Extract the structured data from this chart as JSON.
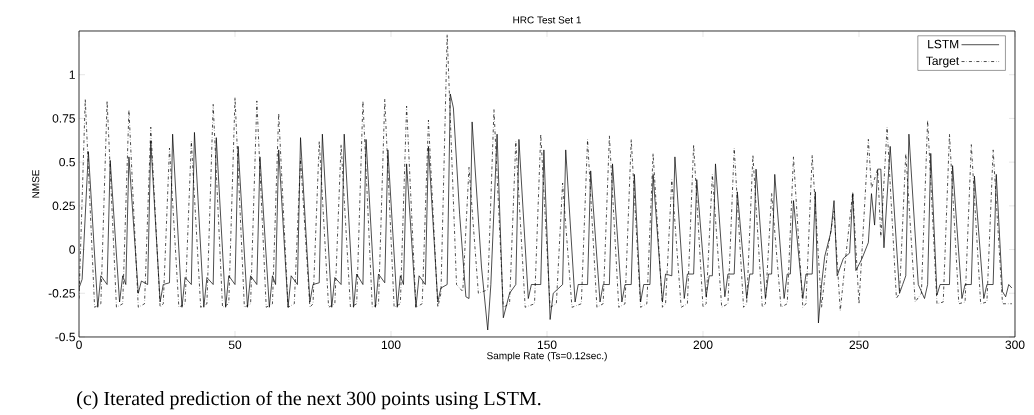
{
  "chart_data": {
    "type": "line",
    "title": "HRC Test Set 1",
    "xlabel": "Sample Rate (Ts=0.12sec.)",
    "ylabel": "NMSE",
    "annotations": [
      "(c) Iterated prediction of the next 300 points using LSTM."
    ],
    "xlim": [
      0,
      300
    ],
    "ylim": [
      -0.5,
      1.25
    ],
    "xticks": [
      0,
      50,
      100,
      150,
      200,
      250,
      300
    ],
    "yticks": [
      -0.5,
      -0.25,
      0,
      0.25,
      0.5,
      0.75,
      1
    ],
    "legend": "top right",
    "series": [
      {
        "name": "LSTM",
        "color": "#000000",
        "line_style": "solid",
        "x": [
          0,
          1,
          3,
          6,
          7,
          9,
          10,
          13,
          14,
          15,
          16,
          19,
          20,
          22,
          23,
          26,
          27,
          29,
          30,
          33,
          34,
          36,
          37,
          40,
          41,
          43,
          44,
          47,
          48,
          50,
          51,
          54,
          55,
          57,
          58,
          61,
          62,
          63,
          64,
          67,
          68,
          70,
          71,
          74,
          75,
          77,
          78,
          81,
          82,
          84,
          85,
          88,
          89,
          91,
          92,
          95,
          96,
          98,
          99,
          102,
          103,
          104,
          105,
          108,
          109,
          111,
          112,
          115,
          116,
          118,
          119,
          120,
          122,
          124,
          125,
          126,
          129,
          131,
          132,
          134,
          136,
          138,
          140,
          141,
          144,
          145,
          148,
          149,
          151,
          152,
          155,
          156,
          159,
          160,
          163,
          164,
          167,
          168,
          170,
          171,
          174,
          175,
          177,
          178,
          180,
          181,
          183,
          184,
          187,
          188,
          190,
          191,
          194,
          195,
          197,
          198,
          201,
          202,
          203,
          204,
          207,
          208,
          210,
          211,
          214,
          215,
          216,
          217,
          220,
          221,
          222,
          223,
          226,
          227,
          228,
          229,
          232,
          233,
          235,
          236,
          237,
          238,
          239,
          241,
          242,
          243,
          245,
          247,
          248,
          249,
          251,
          253,
          254,
          255,
          256,
          257,
          258,
          260,
          263,
          264,
          265,
          266,
          269,
          271,
          272,
          273,
          275,
          276,
          279,
          280,
          283,
          284,
          286,
          287,
          290,
          291,
          293,
          294,
          296,
          297,
          298,
          299
        ],
        "values": [
          -0.22,
          -0.17,
          0.56,
          -0.33,
          -0.15,
          -0.2,
          0.51,
          -0.3,
          -0.15,
          -0.2,
          0.53,
          -0.25,
          -0.18,
          -0.2,
          0.62,
          -0.3,
          -0.2,
          -0.19,
          0.66,
          -0.33,
          -0.16,
          -0.2,
          0.67,
          -0.33,
          -0.16,
          -0.2,
          0.64,
          -0.33,
          -0.15,
          -0.2,
          0.59,
          -0.33,
          -0.15,
          -0.2,
          0.53,
          -0.33,
          -0.15,
          -0.2,
          0.57,
          -0.33,
          -0.15,
          -0.2,
          0.64,
          -0.3,
          -0.2,
          -0.19,
          0.66,
          -0.33,
          -0.16,
          -0.2,
          0.66,
          -0.33,
          -0.14,
          -0.2,
          0.63,
          -0.33,
          -0.14,
          -0.19,
          0.57,
          -0.33,
          -0.15,
          -0.2,
          0.49,
          -0.33,
          -0.15,
          -0.2,
          0.59,
          -0.3,
          -0.22,
          -0.2,
          0.89,
          0.81,
          0.2,
          -0.27,
          -0.28,
          0.73,
          -0.1,
          -0.46,
          -0.2,
          0.66,
          -0.39,
          -0.25,
          -0.2,
          0.63,
          -0.28,
          -0.2,
          -0.2,
          0.57,
          -0.4,
          -0.25,
          -0.2,
          0.57,
          -0.3,
          -0.2,
          -0.2,
          0.45,
          -0.3,
          -0.2,
          -0.2,
          0.49,
          -0.3,
          -0.2,
          -0.2,
          0.43,
          -0.3,
          -0.2,
          -0.2,
          0.43,
          -0.3,
          -0.14,
          -0.15,
          0.53,
          -0.28,
          -0.14,
          -0.14,
          0.4,
          -0.27,
          -0.15,
          -0.15,
          0.49,
          -0.27,
          -0.14,
          -0.14,
          0.33,
          -0.28,
          -0.14,
          -0.14,
          0.46,
          -0.28,
          -0.14,
          -0.14,
          0.43,
          -0.28,
          -0.14,
          -0.14,
          0.28,
          -0.28,
          -0.14,
          -0.14,
          0.33,
          -0.42,
          -0.2,
          -0.04,
          0.1,
          0.28,
          -0.15,
          -0.05,
          -0.02,
          0.32,
          -0.12,
          -0.05,
          0.04,
          0.32,
          0.14,
          0.46,
          0.46,
          0.01,
          0.59,
          -0.25,
          -0.2,
          -0.15,
          0.66,
          -0.2,
          -0.28,
          -0.2,
          0.55,
          -0.26,
          -0.2,
          -0.2,
          0.48,
          -0.28,
          -0.2,
          -0.2,
          0.42,
          -0.28,
          -0.2,
          -0.2,
          0.43,
          -0.24,
          -0.27,
          -0.2,
          -0.22
        ]
      },
      {
        "name": "Target",
        "color": "#000000",
        "line_style": "dashdot",
        "x": [
          0,
          2,
          5,
          7,
          9,
          12,
          14,
          16,
          19,
          21,
          23,
          26,
          27,
          29,
          32,
          34,
          36,
          39,
          41,
          43,
          46,
          48,
          50,
          53,
          55,
          57,
          60,
          62,
          64,
          67,
          69,
          71,
          74,
          75,
          77,
          80,
          82,
          84,
          87,
          89,
          91,
          94,
          96,
          98,
          101,
          103,
          105,
          108,
          110,
          112,
          115,
          116,
          118,
          121,
          123,
          125,
          128,
          131,
          133,
          136,
          138,
          140,
          143,
          146,
          148,
          151,
          153,
          155,
          158,
          161,
          163,
          166,
          168,
          170,
          173,
          175,
          177,
          180,
          182,
          184,
          187,
          188,
          190,
          193,
          195,
          197,
          200,
          201,
          203,
          206,
          208,
          210,
          213,
          214,
          216,
          219,
          220,
          222,
          225,
          227,
          229,
          232,
          233,
          235,
          238,
          240,
          242,
          244,
          246,
          248,
          250,
          251,
          253,
          254,
          256,
          257,
          259,
          262,
          263,
          265,
          268,
          270,
          272,
          275,
          277,
          279,
          282,
          284,
          286,
          289,
          291,
          293,
          296,
          299
        ],
        "values": [
          -0.28,
          0.86,
          -0.33,
          -0.31,
          0.85,
          -0.33,
          -0.31,
          0.8,
          -0.33,
          -0.31,
          0.7,
          -0.33,
          -0.31,
          0.58,
          -0.33,
          -0.31,
          0.62,
          -0.33,
          -0.31,
          0.83,
          -0.33,
          -0.31,
          0.87,
          -0.33,
          -0.31,
          0.85,
          -0.33,
          -0.31,
          0.78,
          -0.33,
          -0.31,
          0.52,
          -0.33,
          -0.31,
          0.62,
          -0.33,
          -0.31,
          0.6,
          -0.33,
          -0.31,
          0.85,
          -0.33,
          -0.31,
          0.86,
          -0.33,
          -0.31,
          0.82,
          -0.33,
          -0.31,
          0.74,
          -0.33,
          -0.25,
          1.23,
          -0.2,
          -0.24,
          0.47,
          -0.25,
          -0.23,
          0.8,
          -0.33,
          -0.31,
          0.62,
          -0.33,
          -0.31,
          0.66,
          -0.33,
          -0.31,
          0.38,
          -0.33,
          -0.31,
          0.63,
          -0.33,
          -0.31,
          0.65,
          -0.33,
          -0.31,
          0.63,
          -0.33,
          -0.31,
          0.55,
          -0.33,
          -0.31,
          0.4,
          -0.33,
          -0.31,
          0.6,
          -0.33,
          -0.31,
          0.43,
          -0.33,
          -0.31,
          0.58,
          -0.33,
          -0.31,
          0.54,
          -0.33,
          -0.31,
          0.32,
          -0.33,
          -0.31,
          0.53,
          -0.33,
          -0.31,
          0.54,
          -0.33,
          0,
          0.22,
          -0.35,
          0,
          0.33,
          -0.31,
          0,
          0.63,
          0.35,
          0.46,
          0.07,
          0.7,
          -0.28,
          -0.25,
          0.55,
          -0.3,
          -0.25,
          0.74,
          -0.31,
          -0.3,
          0.66,
          -0.31,
          -0.3,
          0.6,
          -0.31,
          -0.3,
          0.57,
          -0.31,
          -0.31
        ]
      }
    ]
  }
}
